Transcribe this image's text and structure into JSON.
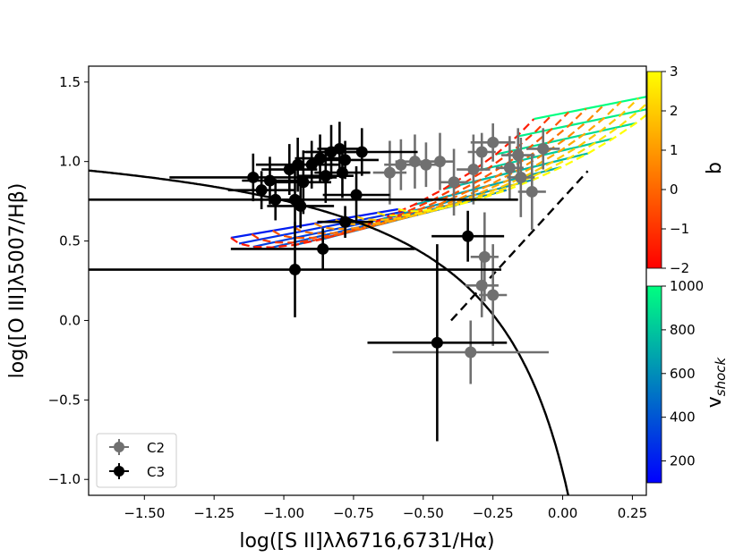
{
  "chart_data": {
    "type": "scatter",
    "xlabel": "log([S II]λλ6716,6731/Hα)",
    "ylabel": "log([O III]λ5007/Hβ)",
    "xlim": [
      -1.7,
      0.3
    ],
    "ylim": [
      -1.1,
      1.6
    ],
    "x_ticks": [
      -1.5,
      -1.25,
      -1.0,
      -0.75,
      -0.5,
      -0.25,
      0.0,
      0.25
    ],
    "x_tick_labels": [
      "−1.50",
      "−1.25",
      "−1.00",
      "−0.75",
      "−0.50",
      "−0.25",
      "0.00",
      "0.25"
    ],
    "y_ticks": [
      -1.0,
      -0.5,
      0.0,
      0.5,
      1.0,
      1.5
    ],
    "y_tick_labels": [
      "−1.0",
      "−0.5",
      "0.0",
      "0.5",
      "1.0",
      "1.5"
    ],
    "grid": false,
    "legend": {
      "position": "lower-left",
      "entries": [
        {
          "label": "C2",
          "color": "#707070"
        },
        {
          "label": "C3",
          "color": "#000000"
        }
      ]
    },
    "colorbars": [
      {
        "label": "b",
        "range": [
          -2,
          3
        ],
        "ticks": [
          -2,
          -1,
          0,
          1,
          2,
          3
        ],
        "tick_labels": [
          "−2",
          "−1",
          "0",
          "1",
          "2",
          "3"
        ],
        "colormap": "autumn"
      },
      {
        "label": "v",
        "label_sub": "shock",
        "range": [
          100,
          1000
        ],
        "ticks": [
          200,
          400,
          600,
          800,
          1000
        ],
        "tick_labels": [
          "200",
          "400",
          "600",
          "800",
          "1000"
        ],
        "colormap": "winter"
      }
    ],
    "series": [
      {
        "name": "C2",
        "color": "#707070",
        "points": [
          {
            "x": -0.62,
            "y": 0.93,
            "xerr": 0.06,
            "yerr": 0.2
          },
          {
            "x": -0.58,
            "y": 0.98,
            "xerr": 0.06,
            "yerr": 0.16
          },
          {
            "x": -0.53,
            "y": 1.0,
            "xerr": 0.07,
            "yerr": 0.17
          },
          {
            "x": -0.49,
            "y": 0.98,
            "xerr": 0.06,
            "yerr": 0.14
          },
          {
            "x": -0.44,
            "y": 1.0,
            "xerr": 0.05,
            "yerr": 0.18
          },
          {
            "x": -0.39,
            "y": 0.87,
            "xerr": 0.05,
            "yerr": 0.21
          },
          {
            "x": -0.32,
            "y": 0.95,
            "xerr": 0.06,
            "yerr": 0.22
          },
          {
            "x": -0.29,
            "y": 1.06,
            "xerr": 0.05,
            "yerr": 0.12
          },
          {
            "x": -0.25,
            "y": 1.12,
            "xerr": 0.08,
            "yerr": 0.12
          },
          {
            "x": -0.19,
            "y": 0.96,
            "xerr": 0.05,
            "yerr": 0.2
          },
          {
            "x": -0.16,
            "y": 1.04,
            "xerr": 0.06,
            "yerr": 0.17
          },
          {
            "x": -0.15,
            "y": 0.9,
            "xerr": 0.05,
            "yerr": 0.25
          },
          {
            "x": -0.11,
            "y": 0.81,
            "xerr": 0.05,
            "yerr": 0.24
          },
          {
            "x": -0.07,
            "y": 1.08,
            "xerr": 0.06,
            "yerr": 0.13
          },
          {
            "x": -0.28,
            "y": 0.4,
            "xerr": 0.05,
            "yerr": 0.28
          },
          {
            "x": -0.29,
            "y": 0.22,
            "xerr": 0.06,
            "yerr": 0.2
          },
          {
            "x": -0.25,
            "y": 0.16,
            "xerr": 0.05,
            "yerr": 0.32
          },
          {
            "x": -0.33,
            "y": -0.2,
            "xerr": 0.28,
            "yerr": 0.2
          }
        ]
      },
      {
        "name": "C3",
        "color": "#000000",
        "points": [
          {
            "x": -1.11,
            "y": 0.9,
            "xerr": 0.3,
            "yerr": 0.15
          },
          {
            "x": -1.08,
            "y": 0.82,
            "xerr": 0.12,
            "yerr": 0.12
          },
          {
            "x": -1.05,
            "y": 0.88,
            "xerr": 0.1,
            "yerr": 0.15
          },
          {
            "x": -1.03,
            "y": 0.76,
            "xerr": 0.08,
            "yerr": 0.13
          },
          {
            "x": -0.98,
            "y": 0.95,
            "xerr": 0.1,
            "yerr": 0.16
          },
          {
            "x": -0.96,
            "y": 0.76,
            "xerr": 0.8,
            "yerr": 0.2
          },
          {
            "x": -0.95,
            "y": 0.98,
            "xerr": 0.15,
            "yerr": 0.17
          },
          {
            "x": -0.94,
            "y": 0.72,
            "xerr": 0.12,
            "yerr": 0.14
          },
          {
            "x": -0.93,
            "y": 0.87,
            "xerr": 0.1,
            "yerr": 0.2
          },
          {
            "x": -0.9,
            "y": 0.98,
            "xerr": 0.08,
            "yerr": 0.15
          },
          {
            "x": -0.87,
            "y": 1.02,
            "xerr": 0.09,
            "yerr": 0.15
          },
          {
            "x": -0.85,
            "y": 0.91,
            "xerr": 0.1,
            "yerr": 0.17
          },
          {
            "x": -0.83,
            "y": 1.06,
            "xerr": 0.1,
            "yerr": 0.17
          },
          {
            "x": -0.8,
            "y": 1.08,
            "xerr": 0.08,
            "yerr": 0.17
          },
          {
            "x": -0.78,
            "y": 1.01,
            "xerr": 0.12,
            "yerr": 0.12
          },
          {
            "x": -0.79,
            "y": 0.93,
            "xerr": 0.1,
            "yerr": 0.16
          },
          {
            "x": -0.74,
            "y": 0.79,
            "xerr": 0.12,
            "yerr": 0.18
          },
          {
            "x": -0.72,
            "y": 1.06,
            "xerr": 0.2,
            "yerr": 0.15
          },
          {
            "x": -0.78,
            "y": 0.62,
            "xerr": 0.1,
            "yerr": 0.1
          },
          {
            "x": -0.96,
            "y": 0.32,
            "xerr": 0.74,
            "yerr": 0.3
          },
          {
            "x": -0.86,
            "y": 0.45,
            "xerr": 0.33,
            "yerr": 0.13
          },
          {
            "x": -0.34,
            "y": 0.53,
            "xerr": 0.13,
            "yerr": 0.16
          },
          {
            "x": -0.45,
            "y": -0.14,
            "xerr": 0.25,
            "yerr": 0.62
          }
        ]
      }
    ],
    "lines": [
      {
        "name": "demarcation",
        "style": "solid",
        "color": "#000000",
        "formula": "y = 0.72/(x - 0.32) + 1.30"
      },
      {
        "name": "seyfert-liner",
        "style": "dashed",
        "color": "#000000",
        "points": [
          [
            -0.4,
            0.0
          ],
          [
            0.09,
            0.94
          ]
        ]
      }
    ]
  }
}
